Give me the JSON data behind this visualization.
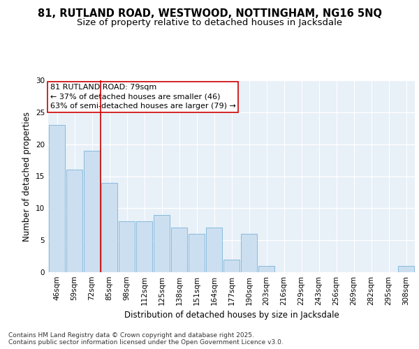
{
  "title_line1": "81, RUTLAND ROAD, WESTWOOD, NOTTINGHAM, NG16 5NQ",
  "title_line2": "Size of property relative to detached houses in Jacksdale",
  "xlabel": "Distribution of detached houses by size in Jacksdale",
  "ylabel": "Number of detached properties",
  "categories": [
    "46sqm",
    "59sqm",
    "72sqm",
    "85sqm",
    "98sqm",
    "112sqm",
    "125sqm",
    "138sqm",
    "151sqm",
    "164sqm",
    "177sqm",
    "190sqm",
    "203sqm",
    "216sqm",
    "229sqm",
    "243sqm",
    "256sqm",
    "269sqm",
    "282sqm",
    "295sqm",
    "308sqm"
  ],
  "values": [
    23,
    16,
    19,
    14,
    8,
    8,
    9,
    7,
    6,
    7,
    2,
    6,
    1,
    0,
    0,
    0,
    0,
    0,
    0,
    0,
    1
  ],
  "bar_color": "#ccdff0",
  "bar_edge_color": "#7ab3d8",
  "reference_line_index": 3,
  "reference_line_color": "#cc0000",
  "annotation_text": "81 RUTLAND ROAD: 79sqm\n← 37% of detached houses are smaller (46)\n63% of semi-detached houses are larger (79) →",
  "annotation_box_color": "#ffffff",
  "annotation_box_edge_color": "#cc0000",
  "ylim": [
    0,
    30
  ],
  "yticks": [
    0,
    5,
    10,
    15,
    20,
    25,
    30
  ],
  "background_color": "#e8f0f8",
  "grid_color": "#ffffff",
  "footer_text": "Contains HM Land Registry data © Crown copyright and database right 2025.\nContains public sector information licensed under the Open Government Licence v3.0.",
  "title_fontsize": 10.5,
  "subtitle_fontsize": 9.5,
  "axis_label_fontsize": 8.5,
  "tick_fontsize": 7.5,
  "annotation_fontsize": 8,
  "footer_fontsize": 6.5
}
